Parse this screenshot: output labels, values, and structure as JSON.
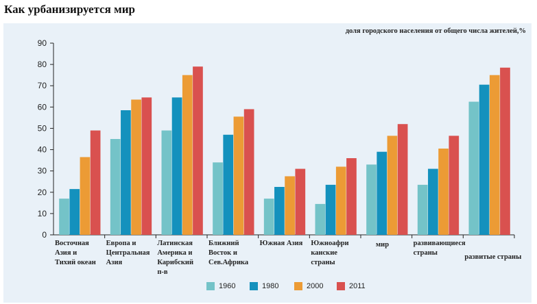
{
  "title": "Как урбанизируется мир",
  "colors": {
    "1960": "#74c3c8",
    "1980": "#1491bd",
    "2000": "#ec9b35",
    "2011": "#d9514f",
    "panel": "#e9f1f8"
  },
  "chart_data": {
    "type": "bar",
    "title": "Как урбанизируется мир",
    "ylabel": "доля городского населения от общего числа жителей,%",
    "xlabel": "",
    "ylim": [
      0,
      90
    ],
    "yticks": [
      "0",
      "10",
      "20",
      "30",
      "40",
      "50",
      "60",
      "70",
      "80",
      "90"
    ],
    "grid": false,
    "legend_position": "bottom",
    "categories": [
      "Восточная\nАзия и\nТихий океан",
      "Европа и\nЦентральная\nАзия",
      "Латинская\nАмерика и\nКарибский\nп-в",
      "Ближний\nВосток и\nСев.Африка",
      "Южная Азия",
      "Южноафри\nканские\nстраны",
      "мир",
      "развивающиеся\nстраны",
      "развитые страны"
    ],
    "series": [
      {
        "name": "1960",
        "values": [
          17,
          45,
          49,
          34,
          17,
          14.5,
          33,
          23.5,
          62.5
        ]
      },
      {
        "name": "1980",
        "values": [
          21.5,
          58.5,
          64.5,
          47,
          22.5,
          23.5,
          39,
          31,
          70.5
        ]
      },
      {
        "name": "2000",
        "values": [
          36.5,
          63.5,
          75,
          55.5,
          27.5,
          32,
          46.5,
          40.5,
          75
        ]
      },
      {
        "name": "2011",
        "values": [
          49,
          64.5,
          79,
          59,
          31,
          36,
          52,
          46.5,
          78.5
        ]
      }
    ]
  }
}
